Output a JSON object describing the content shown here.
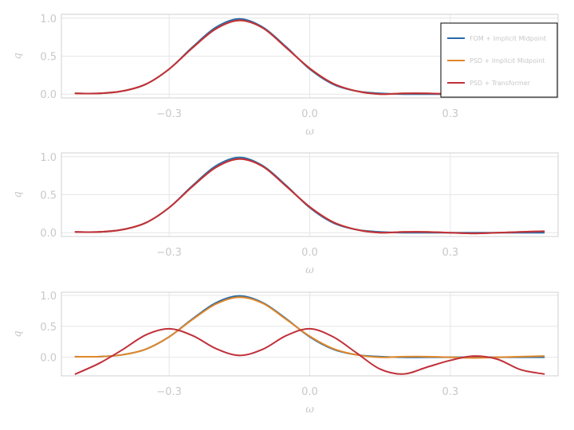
{
  "chart_data": [
    {
      "type": "line",
      "xlabel": "ω",
      "ylabel": "q",
      "xlim": [
        -0.53,
        0.53
      ],
      "ylim": [
        -0.05,
        1.05
      ],
      "xticks": [
        -0.3,
        0.0,
        0.3
      ],
      "xtick_labels": [
        "−0.3",
        "0.0",
        "0.3"
      ],
      "yticks": [
        0.0,
        0.5,
        1.0
      ],
      "ytick_labels": [
        "0.0",
        "0.5",
        "1.0"
      ],
      "grid": true,
      "legend": {
        "placement": "top-right",
        "entries": [
          "FOM + Implicit Midpoint",
          "PSD + Implicit Midpoint",
          "PSD + Transformer"
        ]
      },
      "x": [
        -0.5,
        -0.45,
        -0.4,
        -0.35,
        -0.3,
        -0.25,
        -0.2,
        -0.15,
        -0.1,
        -0.05,
        0.0,
        0.05,
        0.1,
        0.15,
        0.2,
        0.25,
        0.3,
        0.35,
        0.4,
        0.45,
        0.5
      ],
      "series": [
        {
          "name": "FOM + Implicit Midpoint",
          "color": "#2a6aa6",
          "values": [
            0.01,
            0.01,
            0.04,
            0.13,
            0.33,
            0.62,
            0.88,
            0.99,
            0.88,
            0.62,
            0.33,
            0.13,
            0.04,
            0.01,
            0.0,
            0.0,
            0.0,
            0.0,
            0.0,
            0.0,
            0.0
          ]
        },
        {
          "name": "PSD + Implicit Midpoint",
          "color": "#e0882a",
          "values": [
            0.01,
            0.01,
            0.04,
            0.13,
            0.33,
            0.61,
            0.86,
            0.97,
            0.87,
            0.61,
            0.34,
            0.14,
            0.04,
            0.0,
            0.01,
            0.01,
            0.0,
            -0.01,
            0.0,
            0.01,
            0.02
          ]
        },
        {
          "name": "PSD + Transformer",
          "color": "#c0303a",
          "values": [
            0.01,
            0.01,
            0.04,
            0.13,
            0.33,
            0.61,
            0.86,
            0.97,
            0.87,
            0.61,
            0.34,
            0.14,
            0.04,
            0.0,
            0.01,
            0.01,
            0.0,
            -0.01,
            0.0,
            0.01,
            0.02
          ]
        }
      ]
    },
    {
      "type": "line",
      "xlabel": "ω",
      "ylabel": "q",
      "xlim": [
        -0.53,
        0.53
      ],
      "ylim": [
        -0.05,
        1.05
      ],
      "xticks": [
        -0.3,
        0.0,
        0.3
      ],
      "xtick_labels": [
        "−0.3",
        "0.0",
        "0.3"
      ],
      "yticks": [
        0.0,
        0.5,
        1.0
      ],
      "ytick_labels": [
        "0.0",
        "0.5",
        "1.0"
      ],
      "grid": true,
      "x": [
        -0.5,
        -0.45,
        -0.4,
        -0.35,
        -0.3,
        -0.25,
        -0.2,
        -0.15,
        -0.1,
        -0.05,
        0.0,
        0.05,
        0.1,
        0.15,
        0.2,
        0.25,
        0.3,
        0.35,
        0.4,
        0.45,
        0.5
      ],
      "series": [
        {
          "name": "FOM + Implicit Midpoint",
          "color": "#2a6aa6",
          "values": [
            0.01,
            0.01,
            0.04,
            0.13,
            0.33,
            0.62,
            0.88,
            0.99,
            0.88,
            0.62,
            0.33,
            0.13,
            0.04,
            0.01,
            0.0,
            0.0,
            0.0,
            0.0,
            0.0,
            0.0,
            0.0
          ]
        },
        {
          "name": "PSD + Implicit Midpoint",
          "color": "#e0882a",
          "values": [
            0.01,
            0.01,
            0.04,
            0.13,
            0.33,
            0.61,
            0.86,
            0.97,
            0.87,
            0.61,
            0.34,
            0.14,
            0.04,
            0.0,
            0.01,
            0.01,
            0.0,
            -0.01,
            0.0,
            0.01,
            0.02
          ]
        },
        {
          "name": "PSD + Transformer",
          "color": "#c0303a",
          "values": [
            0.01,
            0.01,
            0.04,
            0.13,
            0.33,
            0.61,
            0.86,
            0.97,
            0.87,
            0.61,
            0.34,
            0.14,
            0.04,
            0.0,
            0.01,
            0.01,
            0.0,
            -0.01,
            0.0,
            0.01,
            0.02
          ]
        }
      ]
    },
    {
      "type": "line",
      "xlabel": "ω",
      "ylabel": "q",
      "xlim": [
        -0.53,
        0.53
      ],
      "ylim": [
        -0.3,
        1.05
      ],
      "xticks": [
        -0.3,
        0.0,
        0.3
      ],
      "xtick_labels": [
        "−0.3",
        "0.0",
        "0.3"
      ],
      "yticks": [
        0.0,
        0.5,
        1.0
      ],
      "ytick_labels": [
        "0.0",
        "0.5",
        "1.0"
      ],
      "grid": true,
      "x": [
        -0.5,
        -0.45,
        -0.4,
        -0.35,
        -0.3,
        -0.25,
        -0.2,
        -0.15,
        -0.1,
        -0.05,
        0.0,
        0.05,
        0.1,
        0.15,
        0.2,
        0.25,
        0.3,
        0.35,
        0.4,
        0.45,
        0.5
      ],
      "series": [
        {
          "name": "FOM + Implicit Midpoint",
          "color": "#2a6aa6",
          "values": [
            0.01,
            0.01,
            0.04,
            0.13,
            0.33,
            0.62,
            0.88,
            0.99,
            0.88,
            0.62,
            0.33,
            0.13,
            0.04,
            0.01,
            0.0,
            0.0,
            0.0,
            0.0,
            0.0,
            0.0,
            0.0
          ]
        },
        {
          "name": "PSD + Implicit Midpoint",
          "color": "#e0882a",
          "values": [
            0.01,
            0.01,
            0.04,
            0.13,
            0.33,
            0.61,
            0.86,
            0.97,
            0.87,
            0.61,
            0.34,
            0.14,
            0.04,
            0.0,
            0.01,
            0.01,
            0.0,
            -0.01,
            0.0,
            0.01,
            0.02
          ]
        },
        {
          "name": "PSD + Transformer",
          "color": "#c0303a",
          "values": [
            -0.27,
            -0.1,
            0.12,
            0.36,
            0.46,
            0.35,
            0.14,
            0.03,
            0.13,
            0.35,
            0.46,
            0.33,
            0.07,
            -0.19,
            -0.27,
            -0.16,
            -0.05,
            0.02,
            -0.03,
            -0.2,
            -0.27
          ]
        }
      ]
    }
  ]
}
